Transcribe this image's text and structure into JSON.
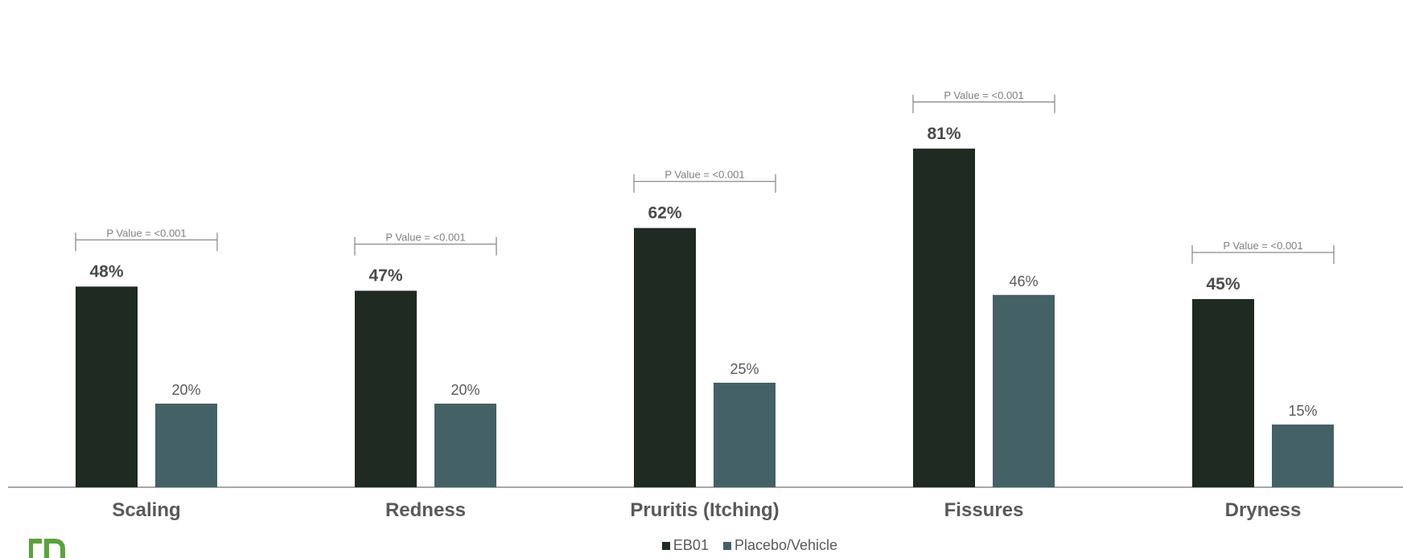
{
  "chart_data": {
    "type": "bar",
    "categories": [
      "Scaling",
      "Redness",
      "Pruritis (Itching)",
      "Fissures",
      "Dryness"
    ],
    "series": [
      {
        "name": "EB01",
        "values": [
          48,
          47,
          62,
          81,
          45
        ],
        "labels": [
          "48%",
          "47%",
          "62%",
          "81%",
          "45%"
        ],
        "color": "#1e2a22"
      },
      {
        "name": "Placebo/Vehicle",
        "values": [
          20,
          20,
          25,
          46,
          15
        ],
        "labels": [
          "20%",
          "20%",
          "25%",
          "46%",
          "15%"
        ],
        "color": "#446165"
      }
    ],
    "annotations": [
      "P Value = <0.001",
      "P Value = <0.001",
      "P Value = <0.001",
      "P Value = <0.001",
      "P Value = <0.001"
    ],
    "ylim": [
      0,
      100
    ],
    "grid": false,
    "legend_position": "bottom"
  },
  "legend": {
    "items": [
      {
        "label": "EB01",
        "color": "#1e2a22"
      },
      {
        "label": "Placebo/Vehicle",
        "color": "#446165"
      }
    ]
  },
  "logo": {
    "icon": "company-logo-icon",
    "color": "#5aa33c"
  }
}
